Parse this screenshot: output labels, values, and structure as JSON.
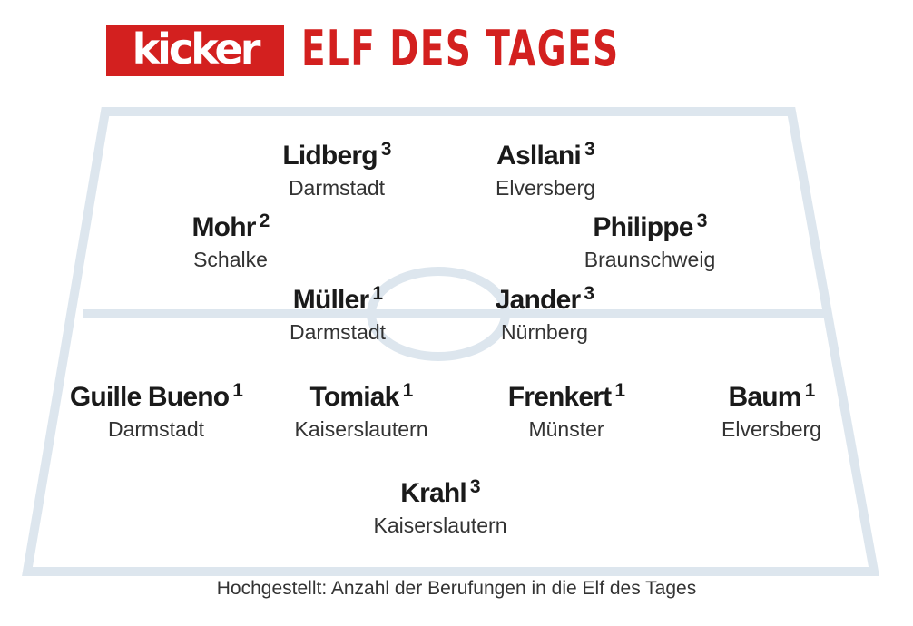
{
  "header": {
    "logo_text": "kicker",
    "title": "ELF DES TAGES"
  },
  "colors": {
    "brand_red": "#d3201f",
    "pitch_lines": "#dde6ee"
  },
  "players": [
    {
      "id": "lidberg",
      "name": "Lidberg",
      "count": "3",
      "club": "Darmstadt"
    },
    {
      "id": "asllani",
      "name": "Asllani",
      "count": "3",
      "club": "Elversberg"
    },
    {
      "id": "mohr",
      "name": "Mohr",
      "count": "2",
      "club": "Schalke"
    },
    {
      "id": "philippe",
      "name": "Philippe",
      "count": "3",
      "club": "Braunschweig"
    },
    {
      "id": "mueller",
      "name": "Müller",
      "count": "1",
      "club": "Darmstadt"
    },
    {
      "id": "jander",
      "name": "Jander",
      "count": "3",
      "club": "Nürnberg"
    },
    {
      "id": "guille-bueno",
      "name": "Guille Bueno",
      "count": "1",
      "club": "Darmstadt"
    },
    {
      "id": "tomiak",
      "name": "Tomiak",
      "count": "1",
      "club": "Kaiserslautern"
    },
    {
      "id": "frenkert",
      "name": "Frenkert",
      "count": "1",
      "club": "Münster"
    },
    {
      "id": "baum",
      "name": "Baum",
      "count": "1",
      "club": "Elversberg"
    },
    {
      "id": "krahl",
      "name": "Krahl",
      "count": "3",
      "club": "Kaiserslautern"
    }
  ],
  "footnote": "Hochgestellt: Anzahl der Berufungen in die Elf des Tages"
}
